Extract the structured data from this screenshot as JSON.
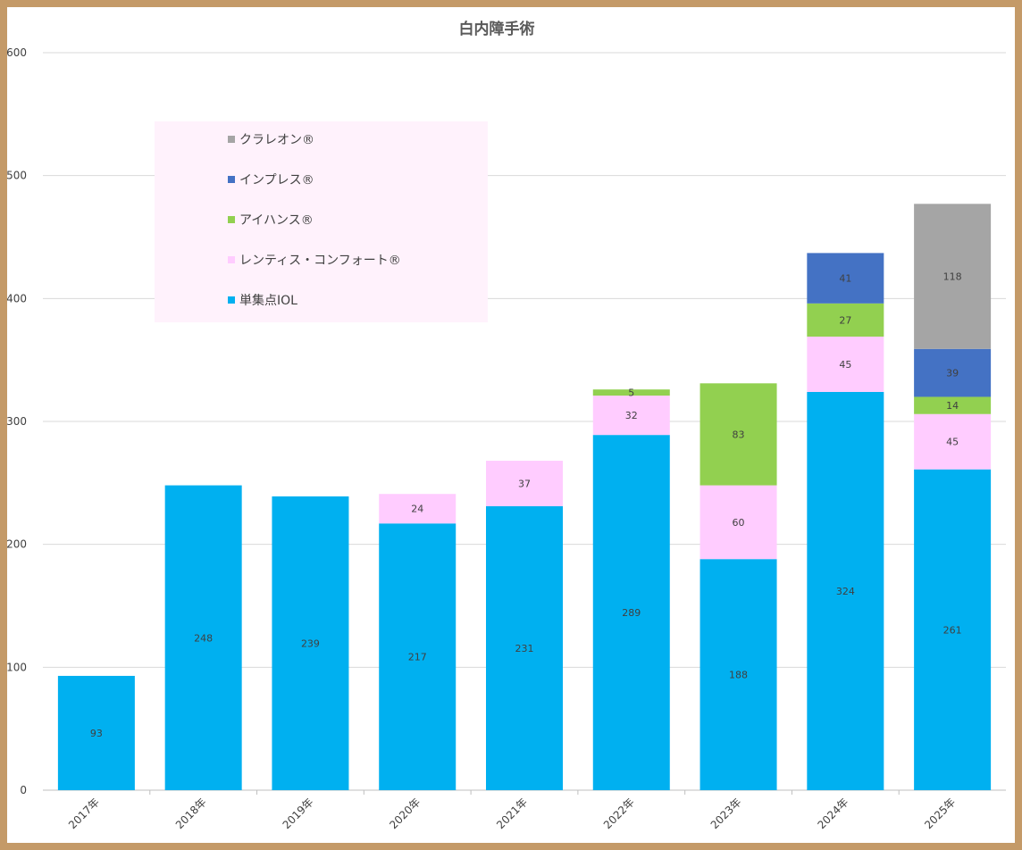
{
  "chart_data": {
    "type": "bar",
    "stacked": true,
    "title": "白内障手術",
    "categories": [
      "2017年",
      "2018年",
      "2019年",
      "2020年",
      "2021年",
      "2022年",
      "2023年",
      "2024年",
      "2025年"
    ],
    "ytick_labels": [
      "0",
      "100",
      "200",
      "300",
      "400",
      "500",
      "600"
    ],
    "ylim": [
      0,
      600
    ],
    "grid": true,
    "legend_position": "top-left",
    "series": [
      {
        "name": "単集点IOL",
        "color": "#00b0f0",
        "values": [
          93,
          248,
          239,
          217,
          231,
          289,
          188,
          324,
          261
        ]
      },
      {
        "name": "レンティス・コンフォート®",
        "color": "#ffccff",
        "values": [
          0,
          0,
          0,
          24,
          37,
          32,
          60,
          45,
          45
        ]
      },
      {
        "name": "アイハンス®",
        "color": "#92d050",
        "values": [
          0,
          0,
          0,
          0,
          0,
          5,
          83,
          27,
          14
        ]
      },
      {
        "name": "インプレス®",
        "color": "#4472c4",
        "values": [
          0,
          0,
          0,
          0,
          0,
          0,
          0,
          41,
          39
        ]
      },
      {
        "name": "クラレオン®",
        "color": "#a5a5a5",
        "values": [
          0,
          0,
          0,
          0,
          0,
          0,
          0,
          0,
          118
        ]
      }
    ],
    "legend_order": [
      4,
      3,
      2,
      1,
      0
    ]
  }
}
